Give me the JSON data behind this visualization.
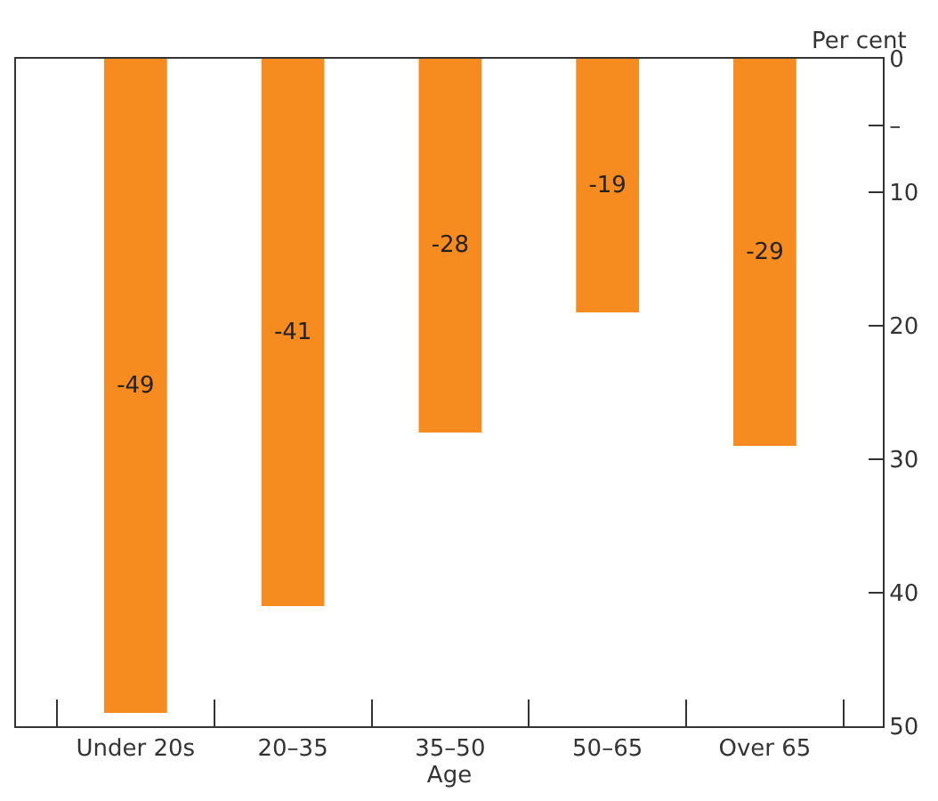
{
  "chart_data": {
    "type": "bar",
    "categories": [
      "Under 20s",
      "20–35",
      "35–50",
      "50–65",
      "Over 65"
    ],
    "values": [
      -49,
      -41,
      -28,
      -19,
      -29
    ],
    "color": "#f68b1f",
    "data_labels": true,
    "xlabel": "Age",
    "annotations": [
      "Per cent"
    ],
    "ylim": [
      -50,
      0
    ],
    "yticks": [
      {
        "value": -50,
        "label": "50"
      },
      {
        "value": -40,
        "label": "40"
      },
      {
        "value": -30,
        "label": "30"
      },
      {
        "value": -20,
        "label": "20"
      },
      {
        "value": -10,
        "label": "10"
      },
      {
        "value": -5,
        "label": "–"
      },
      {
        "value": 0,
        "label": "0"
      }
    ],
    "legend": false
  }
}
